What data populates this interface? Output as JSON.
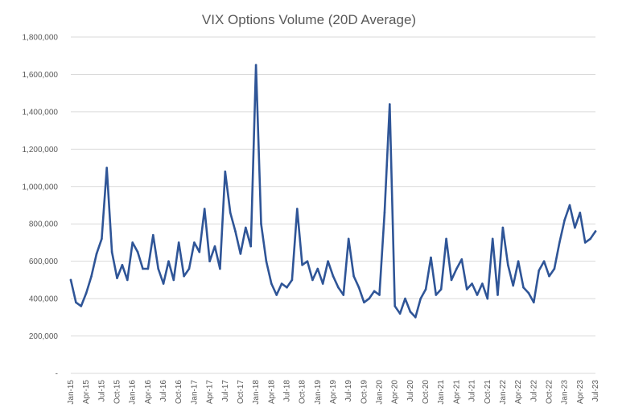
{
  "chart_data": {
    "type": "line",
    "title": "VIX Options Volume (20D Average)",
    "xlabel": "",
    "ylabel": "",
    "ylim": [
      0,
      1800000
    ],
    "y_ticks": [
      {
        "value": 0,
        "label": "-"
      },
      {
        "value": 200000,
        "label": "200,000"
      },
      {
        "value": 400000,
        "label": "400,000"
      },
      {
        "value": 600000,
        "label": "600,000"
      },
      {
        "value": 800000,
        "label": "800,000"
      },
      {
        "value": 1000000,
        "label": "1,000,000"
      },
      {
        "value": 1200000,
        "label": "1,200,000"
      },
      {
        "value": 1400000,
        "label": "1,400,000"
      },
      {
        "value": 1600000,
        "label": "1,600,000"
      },
      {
        "value": 1800000,
        "label": "1,800,000"
      }
    ],
    "x_tick_labels": [
      "Jan-15",
      "Apr-15",
      "Jul-15",
      "Oct-15",
      "Jan-16",
      "Apr-16",
      "Jul-16",
      "Oct-16",
      "Jan-17",
      "Apr-17",
      "Jul-17",
      "Oct-17",
      "Jan-18",
      "Apr-18",
      "Jul-18",
      "Oct-18",
      "Jan-19",
      "Apr-19",
      "Jul-19",
      "Oct-19",
      "Jan-20",
      "Apr-20",
      "Jul-20",
      "Oct-20",
      "Jan-21",
      "Apr-21",
      "Jul-21",
      "Oct-21",
      "Jan-22",
      "Apr-22",
      "Jul-22",
      "Oct-22",
      "Jan-23",
      "Apr-23",
      "Jul-23"
    ],
    "grid": true,
    "legend": "none",
    "series": [
      {
        "color": "#2f5597",
        "x": [
          "2015-01",
          "2015-02",
          "2015-03",
          "2015-04",
          "2015-05",
          "2015-06",
          "2015-07",
          "2015-08",
          "2015-09",
          "2015-10",
          "2015-11",
          "2015-12",
          "2016-01",
          "2016-02",
          "2016-03",
          "2016-04",
          "2016-05",
          "2016-06",
          "2016-07",
          "2016-08",
          "2016-09",
          "2016-10",
          "2016-11",
          "2016-12",
          "2017-01",
          "2017-02",
          "2017-03",
          "2017-04",
          "2017-05",
          "2017-06",
          "2017-07",
          "2017-08",
          "2017-09",
          "2017-10",
          "2017-11",
          "2017-12",
          "2018-01",
          "2018-02",
          "2018-03",
          "2018-04",
          "2018-05",
          "2018-06",
          "2018-07",
          "2018-08",
          "2018-09",
          "2018-10",
          "2018-11",
          "2018-12",
          "2019-01",
          "2019-02",
          "2019-03",
          "2019-04",
          "2019-05",
          "2019-06",
          "2019-07",
          "2019-08",
          "2019-09",
          "2019-10",
          "2019-11",
          "2019-12",
          "2020-01",
          "2020-02",
          "2020-03",
          "2020-04",
          "2020-05",
          "2020-06",
          "2020-07",
          "2020-08",
          "2020-09",
          "2020-10",
          "2020-11",
          "2020-12",
          "2021-01",
          "2021-02",
          "2021-03",
          "2021-04",
          "2021-05",
          "2021-06",
          "2021-07",
          "2021-08",
          "2021-09",
          "2021-10",
          "2021-11",
          "2021-12",
          "2022-01",
          "2022-02",
          "2022-03",
          "2022-04",
          "2022-05",
          "2022-06",
          "2022-07",
          "2022-08",
          "2022-09",
          "2022-10",
          "2022-11",
          "2022-12",
          "2023-01",
          "2023-02",
          "2023-03",
          "2023-04",
          "2023-05",
          "2023-06",
          "2023-07"
        ],
        "values": [
          500000,
          380000,
          360000,
          430000,
          520000,
          640000,
          720000,
          1100000,
          650000,
          510000,
          580000,
          500000,
          700000,
          650000,
          560000,
          560000,
          740000,
          560000,
          480000,
          600000,
          500000,
          700000,
          520000,
          560000,
          700000,
          650000,
          880000,
          600000,
          680000,
          560000,
          1080000,
          860000,
          760000,
          640000,
          780000,
          680000,
          1650000,
          800000,
          600000,
          480000,
          420000,
          480000,
          460000,
          500000,
          880000,
          580000,
          600000,
          500000,
          560000,
          480000,
          600000,
          520000,
          460000,
          420000,
          720000,
          520000,
          460000,
          380000,
          400000,
          440000,
          420000,
          860000,
          1440000,
          360000,
          320000,
          400000,
          330000,
          300000,
          400000,
          450000,
          620000,
          420000,
          450000,
          720000,
          500000,
          560000,
          610000,
          450000,
          480000,
          420000,
          480000,
          400000,
          720000,
          420000,
          780000,
          580000,
          470000,
          600000,
          460000,
          430000,
          380000,
          550000,
          600000,
          520000,
          560000,
          700000,
          820000,
          900000,
          780000,
          860000,
          700000,
          720000,
          760000
        ]
      }
    ]
  }
}
